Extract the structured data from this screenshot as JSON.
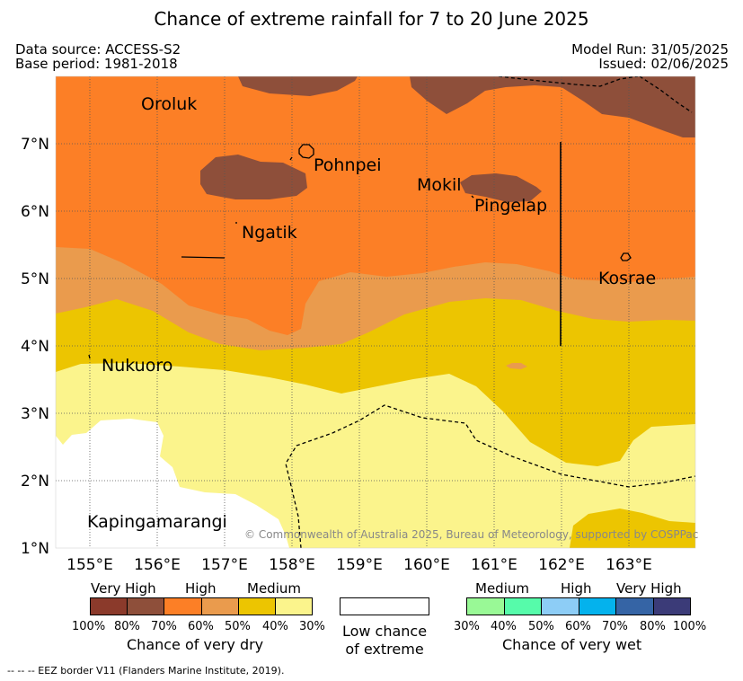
{
  "title": "Chance of extreme rainfall for 7 to 20 June 2025",
  "meta": {
    "data_source": "Data source: ACCESS-S2",
    "base_period": "Base period: 1981-2018",
    "model_run": "Model Run: 31/05/2025",
    "issued": "Issued: 02/06/2025"
  },
  "map": {
    "x_ticks": [
      "155°E",
      "156°E",
      "157°E",
      "158°E",
      "159°E",
      "160°E",
      "161°E",
      "162°E",
      "163°E"
    ],
    "y_ticks": [
      "7°N",
      "6°N",
      "5°N",
      "4°N",
      "3°N",
      "2°N",
      "1°N"
    ],
    "places": [
      "Oroluk",
      "Pohnpei",
      "Mokil",
      "Pingelap",
      "Ngatik",
      "Kosrae",
      "Nukuoro",
      "Kapingamarangi"
    ],
    "copyright": "© Commonwealth of Australia 2025, Bureau of Meteorology, supported by COSPPac"
  },
  "legend": {
    "dry": {
      "categories": [
        "Very High",
        "High",
        "Medium"
      ],
      "colors": [
        "#8b3a2b",
        "#8e4f3a",
        "#fc7f26",
        "#ea9b4d",
        "#ecc501",
        "#fbf48c"
      ],
      "percents": [
        "100%",
        "80%",
        "70%",
        "60%",
        "50%",
        "40%",
        "30%"
      ],
      "title": "Chance of very dry"
    },
    "low": {
      "line1": "Low chance",
      "line2": "of extreme"
    },
    "wet": {
      "categories": [
        "Medium",
        "High",
        "Very High"
      ],
      "colors": [
        "#99f996",
        "#56fbaa",
        "#8dcdf6",
        "#04b2ed",
        "#3564a5",
        "#3b3b78"
      ],
      "percents": [
        "30%",
        "40%",
        "50%",
        "60%",
        "70%",
        "80%",
        "100%"
      ],
      "title": "Chance of very wet"
    }
  },
  "footnote": "-- -- -- EEZ border V11 (Flanders Marine Institute, 2019)."
}
